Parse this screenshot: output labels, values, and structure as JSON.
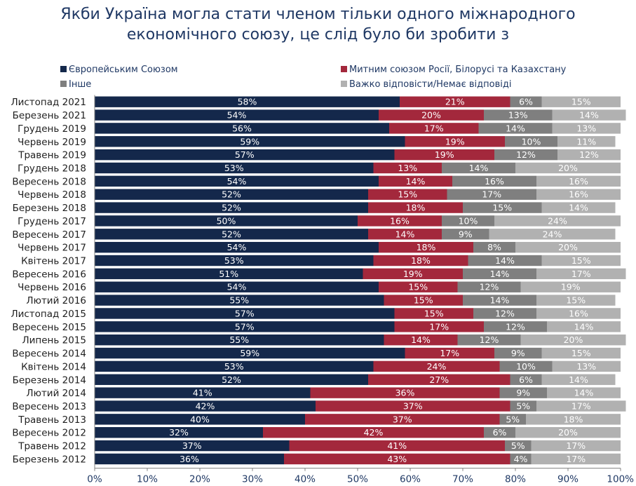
{
  "title_lines": [
    "Якби Україна могла стати членом тільки одного міжнародного",
    "економічного союзу, це слід було би зробити з"
  ],
  "chart_data": {
    "type": "bar",
    "orientation": "horizontal",
    "stacked": true,
    "percent": true,
    "title": "Якби Україна могла стати членом тільки одного міжнародного економічного союзу, це слід було би зробити з",
    "xlim": [
      0,
      100
    ],
    "xticks": [
      "0%",
      "10%",
      "20%",
      "30%",
      "40%",
      "50%",
      "60%",
      "70%",
      "80%",
      "90%",
      "100%"
    ],
    "legend_position": "top",
    "grid": false,
    "categories": [
      "Листопад 2021",
      "Березень 2021",
      "Грудень 2019",
      "Червень 2019",
      "Травень 2019",
      "Грудень 2018",
      "Вересень 2018",
      "Червень 2018",
      "Березень 2018",
      "Грудень 2017",
      "Вересень 2017",
      "Червень 2017",
      "Квітень 2017",
      "Вересень 2016",
      "Червень 2016",
      "Лютий 2016",
      "Листопад 2015",
      "Вересень 2015",
      "Липень 2015",
      "Вересень 2014",
      "Квітень 2014",
      "Березень 2014",
      "Лютий 2014",
      "Вересень 2013",
      "Травень 2013",
      "Вересень 2012",
      "Травень 2012",
      "Березень 2012"
    ],
    "series": [
      {
        "name": "Європейським Союзом",
        "color": "#14284b",
        "values": [
          58,
          54,
          56,
          59,
          57,
          53,
          54,
          52,
          52,
          50,
          52,
          54,
          53,
          51,
          54,
          55,
          57,
          57,
          55,
          59,
          53,
          52,
          41,
          42,
          40,
          32,
          37,
          36
        ]
      },
      {
        "name": "Митним союзом Росії, Білорусі та Казахстану",
        "color": "#a3283c",
        "values": [
          21,
          20,
          17,
          19,
          19,
          13,
          14,
          15,
          18,
          16,
          14,
          18,
          18,
          19,
          15,
          15,
          15,
          17,
          14,
          17,
          24,
          27,
          36,
          37,
          37,
          42,
          41,
          43
        ]
      },
      {
        "name": "Інше",
        "color": "#7f7f7f",
        "values": [
          6,
          13,
          14,
          10,
          12,
          14,
          16,
          17,
          15,
          10,
          9,
          8,
          14,
          14,
          12,
          14,
          12,
          12,
          12,
          9,
          10,
          6,
          9,
          5,
          5,
          6,
          5,
          4
        ]
      },
      {
        "name": "Важко відповісти/Немає відповіді",
        "color": "#b1b1b1",
        "values": [
          15,
          14,
          13,
          11,
          12,
          20,
          16,
          16,
          14,
          24,
          24,
          20,
          15,
          17,
          19,
          15,
          16,
          14,
          20,
          15,
          13,
          14,
          14,
          17,
          18,
          20,
          17,
          17
        ]
      }
    ]
  }
}
